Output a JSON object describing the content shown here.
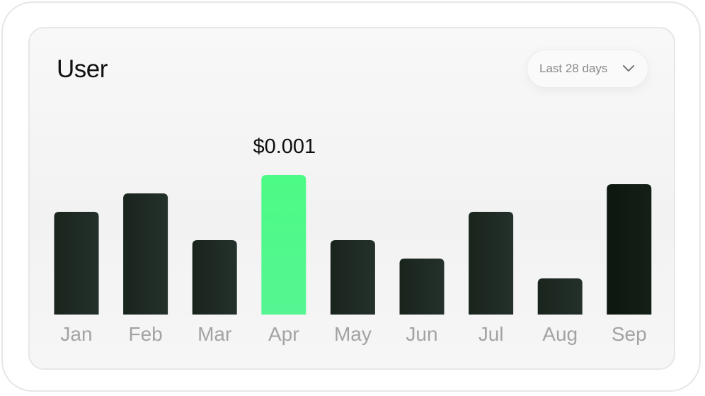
{
  "card": {
    "title": "User",
    "range": {
      "label": "Last 28 days",
      "icon": "chevron-down-icon"
    }
  },
  "colors": {
    "bar": "#1c2a22",
    "bar_dark": "#0f1a13",
    "highlight": "#4dfa87"
  },
  "chart_data": {
    "type": "bar",
    "categories": [
      "Jan",
      "Feb",
      "Mar",
      "Apr",
      "May",
      "Jun",
      "Jul",
      "Aug",
      "Sep"
    ],
    "values": [
      145,
      171,
      105,
      197,
      105,
      79,
      145,
      51,
      184
    ],
    "highlight_index": 3,
    "highlight_label": "$0.001",
    "grid": false
  }
}
